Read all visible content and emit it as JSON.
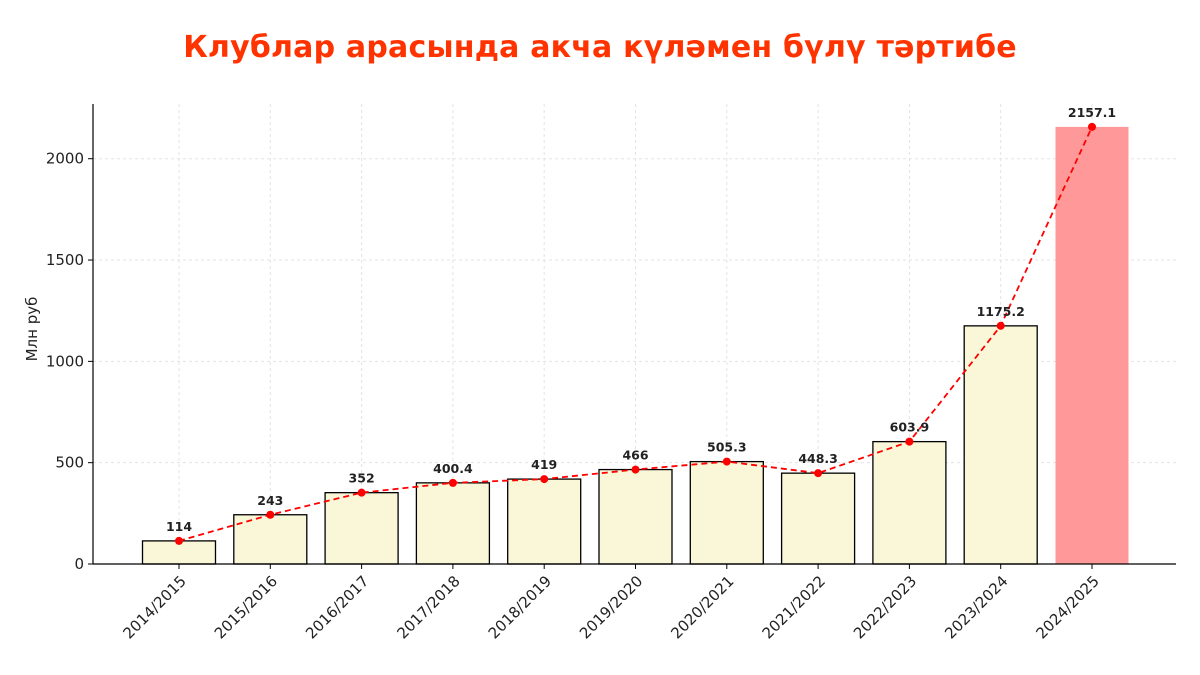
{
  "chart_data": {
    "type": "bar",
    "title": "Клублар арасында акча күләмен бүлү тәртибе",
    "ylabel": "Млн руб",
    "xlabel": "",
    "categories": [
      "2014/2015",
      "2015/2016",
      "2016/2017",
      "2017/2018",
      "2018/2019",
      "2019/2020",
      "2020/2021",
      "2021/2022",
      "2022/2023",
      "2023/2024",
      "2024/2025"
    ],
    "values": [
      114,
      243,
      352,
      400.4,
      419,
      466,
      505.3,
      448.3,
      603.9,
      1175.2,
      2157.1
    ],
    "value_labels": [
      "114",
      "243",
      "352",
      "400.4",
      "419",
      "466",
      "505.3",
      "448.3",
      "603.9",
      "1175.2",
      "2157.1"
    ],
    "ylim": [
      0,
      2270
    ],
    "yticks": [
      0,
      500,
      1000,
      1500,
      2000
    ],
    "grid": true,
    "overlay": "line",
    "colors": {
      "bar": "#faf6d8",
      "bar_highlight": "#ff9999",
      "line": "#ff0000",
      "title": "#ff3300"
    },
    "highlight_index": 10
  }
}
